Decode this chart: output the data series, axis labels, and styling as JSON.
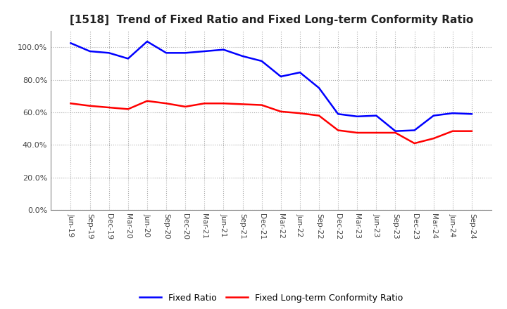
{
  "title": "[1518]  Trend of Fixed Ratio and Fixed Long-term Conformity Ratio",
  "x_labels": [
    "Jun-19",
    "Sep-19",
    "Dec-19",
    "Mar-20",
    "Jun-20",
    "Sep-20",
    "Dec-20",
    "Mar-21",
    "Jun-21",
    "Sep-21",
    "Dec-21",
    "Mar-22",
    "Jun-22",
    "Sep-22",
    "Dec-22",
    "Mar-23",
    "Jun-23",
    "Sep-23",
    "Dec-23",
    "Mar-24",
    "Jun-24",
    "Sep-24"
  ],
  "fixed_ratio": [
    102.5,
    97.5,
    96.5,
    93.0,
    103.5,
    96.5,
    96.5,
    97.5,
    98.5,
    94.5,
    91.5,
    82.0,
    84.5,
    75.0,
    59.0,
    57.5,
    58.0,
    48.5,
    49.0,
    58.0,
    59.5,
    59.0
  ],
  "fixed_lt_ratio": [
    65.5,
    64.0,
    63.0,
    62.0,
    67.0,
    65.5,
    63.5,
    65.5,
    65.5,
    65.0,
    64.5,
    60.5,
    59.5,
    58.0,
    49.0,
    47.5,
    47.5,
    47.5,
    41.0,
    44.0,
    48.5,
    48.5
  ],
  "fixed_ratio_color": "#0000FF",
  "fixed_lt_ratio_color": "#FF0000",
  "ylim": [
    0,
    110
  ],
  "yticks": [
    0,
    20,
    40,
    60,
    80,
    100
  ],
  "background_color": "#FFFFFF",
  "grid_color": "#AAAAAA",
  "legend_labels": [
    "Fixed Ratio",
    "Fixed Long-term Conformity Ratio"
  ]
}
